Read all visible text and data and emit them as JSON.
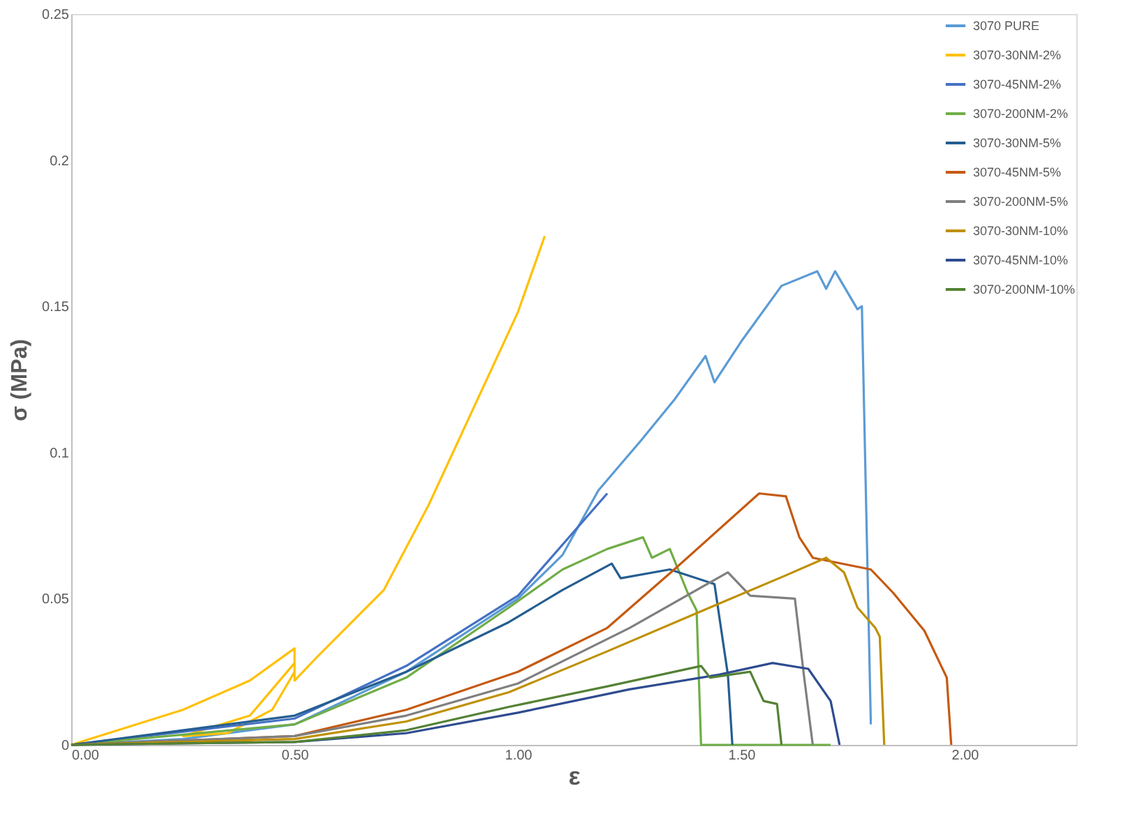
{
  "chart_data": {
    "type": "line",
    "xlabel": "ε",
    "ylabel": "σ (MPa)",
    "xlim": [
      0,
      2.25
    ],
    "ylim": [
      0,
      0.25
    ],
    "xticks": [
      {
        "value": 0,
        "label": "0.00"
      },
      {
        "value": 0.5,
        "label": "0.50"
      },
      {
        "value": 1,
        "label": "1.00"
      },
      {
        "value": 1.5,
        "label": "1.50"
      },
      {
        "value": 2,
        "label": "2.00"
      }
    ],
    "yticks": [
      0,
      0.05,
      0.1,
      0.15,
      0.2,
      0.25
    ],
    "grid": false,
    "legend": "top right",
    "marker": "none",
    "line_style": "solid",
    "series": [
      {
        "name": "3070 PURE",
        "color": "#5b9bd5",
        "x": [
          0,
          0.25,
          0.5,
          0.75,
          1.0,
          1.1,
          1.18,
          1.275,
          1.35,
          1.42,
          1.44,
          1.5,
          1.59,
          1.67,
          1.69,
          1.71,
          1.76,
          1.77,
          1.79
        ],
        "values": [
          0,
          0.002,
          0.007,
          0.025,
          0.05,
          0.065,
          0.087,
          0.104,
          0.118,
          0.133,
          0.124,
          0.138,
          0.157,
          0.162,
          0.156,
          0.162,
          0.149,
          0.15,
          0.007
        ]
      },
      {
        "name": "3070-30NM-2%",
        "color": "#ffc000",
        "x": [
          0,
          0.25,
          0.4,
          0.5,
          0.5,
          0.45,
          0.35,
          0.25,
          0.4,
          0.5,
          0.5,
          0.55,
          0.7,
          0.8,
          0.9,
          1.0,
          1.06
        ],
        "values": [
          0,
          0.012,
          0.022,
          0.033,
          0.025,
          0.012,
          0.004,
          0.003,
          0.01,
          0.028,
          0.022,
          0.03,
          0.053,
          0.082,
          0.115,
          0.148,
          0.174
        ]
      },
      {
        "name": "3070-45NM-2%",
        "color": "#4472c4",
        "x": [
          0,
          0.5,
          0.75,
          1.0,
          1.2
        ],
        "values": [
          0,
          0.009,
          0.027,
          0.051,
          0.086
        ]
      },
      {
        "name": "3070-200NM-2%",
        "color": "#70ad47",
        "x": [
          0,
          0.5,
          0.75,
          0.98,
          1.1,
          1.2,
          1.28,
          1.3,
          1.34,
          1.38,
          1.4,
          1.41,
          1.7
        ],
        "values": [
          0,
          0.007,
          0.023,
          0.047,
          0.06,
          0.067,
          0.071,
          0.064,
          0.067,
          0.052,
          0.046,
          0,
          0
        ]
      },
      {
        "name": "3070-30NM-5%",
        "color": "#255e91",
        "x": [
          0,
          0.5,
          0.75,
          0.98,
          1.1,
          1.21,
          1.23,
          1.34,
          1.44,
          1.47,
          1.48
        ],
        "values": [
          0,
          0.01,
          0.025,
          0.042,
          0.053,
          0.062,
          0.057,
          0.06,
          0.055,
          0.024,
          0
        ]
      },
      {
        "name": "3070-45NM-5%",
        "color": "#c55a11",
        "x": [
          0,
          0.5,
          0.75,
          1.0,
          1.2,
          1.35,
          1.54,
          1.6,
          1.63,
          1.66,
          1.79,
          1.84,
          1.91,
          1.96,
          1.97
        ],
        "values": [
          0,
          0.003,
          0.012,
          0.025,
          0.04,
          0.06,
          0.086,
          0.085,
          0.071,
          0.064,
          0.06,
          0.052,
          0.039,
          0.023,
          0
        ]
      },
      {
        "name": "3070-200NM-5%",
        "color": "#7f7f7f",
        "x": [
          0,
          0.5,
          0.75,
          1.0,
          1.25,
          1.47,
          1.52,
          1.62,
          1.64,
          1.66
        ],
        "values": [
          0,
          0.003,
          0.01,
          0.021,
          0.04,
          0.059,
          0.051,
          0.05,
          0.024,
          0
        ]
      },
      {
        "name": "3070-30NM-10%",
        "color": "#bf9000",
        "x": [
          0,
          0.5,
          0.75,
          0.98,
          1.2,
          1.43,
          1.6,
          1.69,
          1.73,
          1.76,
          1.8,
          1.81,
          1.82
        ],
        "values": [
          0,
          0.002,
          0.008,
          0.018,
          0.032,
          0.047,
          0.058,
          0.064,
          0.059,
          0.047,
          0.04,
          0.037,
          0
        ]
      },
      {
        "name": "3070-45NM-10%",
        "color": "#2f4c8f",
        "x": [
          0,
          0.5,
          0.75,
          1.0,
          1.25,
          1.45,
          1.57,
          1.65,
          1.7,
          1.72
        ],
        "values": [
          0,
          0.001,
          0.004,
          0.011,
          0.019,
          0.024,
          0.028,
          0.026,
          0.015,
          0
        ]
      },
      {
        "name": "3070-200NM-10%",
        "color": "#548235",
        "x": [
          0,
          0.5,
          0.75,
          0.98,
          1.2,
          1.41,
          1.43,
          1.52,
          1.55,
          1.58,
          1.59
        ],
        "values": [
          0,
          0.001,
          0.005,
          0.013,
          0.02,
          0.027,
          0.023,
          0.025,
          0.015,
          0.014,
          0
        ]
      }
    ]
  }
}
